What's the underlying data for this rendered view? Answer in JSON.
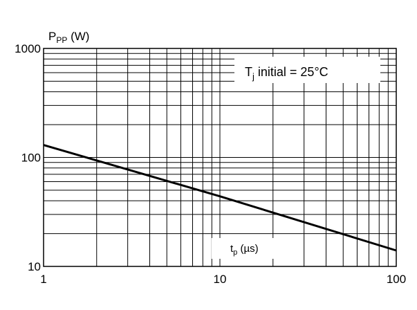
{
  "chart_data": {
    "type": "line",
    "title": "",
    "ylabel": {
      "main": "P",
      "sub": "PP",
      "suffix": " (W)"
    },
    "xlabel": {
      "main": "t",
      "sub": "p",
      "suffix": " (µs)"
    },
    "annotation": {
      "main": "T",
      "sub": "j",
      "suffix": " initial = 25°C"
    },
    "x_scale": "log",
    "y_scale": "log",
    "xlim": [
      1,
      100
    ],
    "ylim": [
      10,
      1000
    ],
    "x_tick_labels": [
      "1",
      "10",
      "100"
    ],
    "y_tick_labels": [
      "10",
      "100",
      "1000"
    ],
    "x_ticks": [
      1,
      10,
      100
    ],
    "y_ticks": [
      10,
      100,
      1000
    ],
    "grid": true,
    "series": [
      {
        "x": [
          1,
          10,
          100
        ],
        "y": [
          130,
          44,
          14
        ]
      }
    ],
    "colors": {
      "line": "#000000",
      "grid": "#000000",
      "background": "#ffffff"
    }
  }
}
